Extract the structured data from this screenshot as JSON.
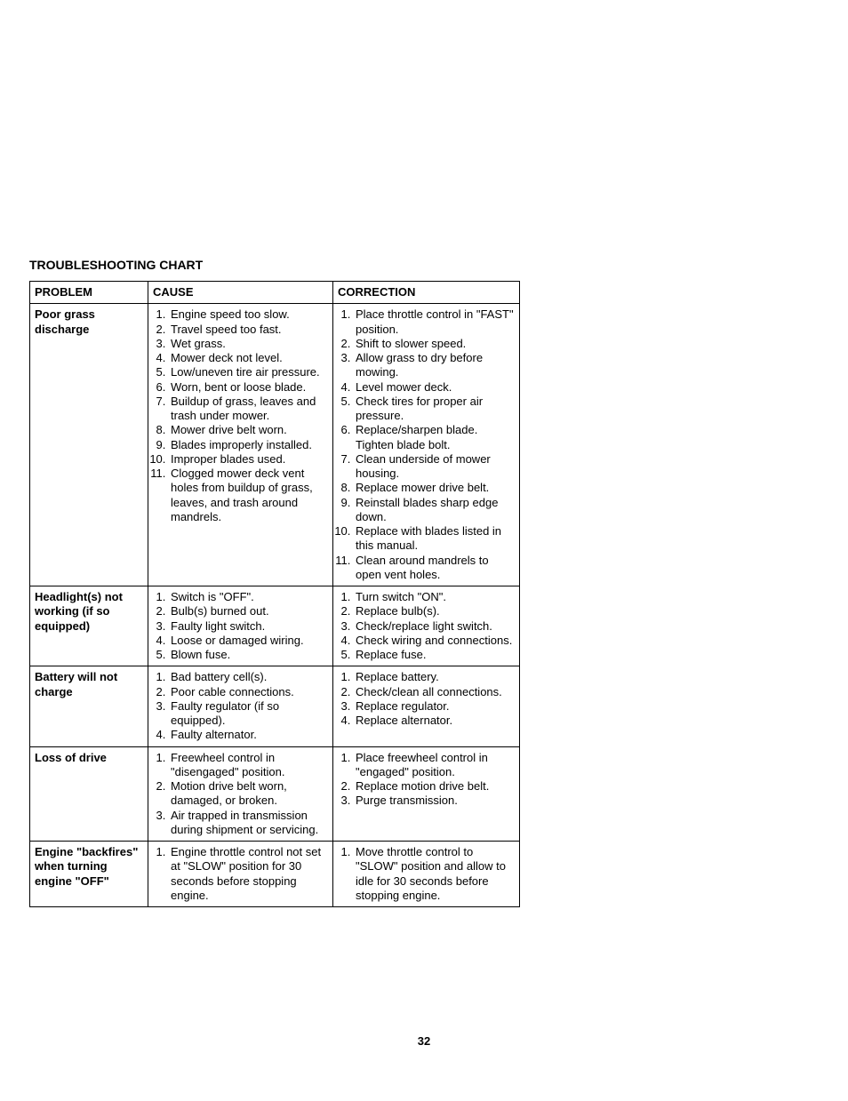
{
  "title": "TROUBLESHOOTING CHART",
  "page_number": "32",
  "headers": {
    "problem": "PROBLEM",
    "cause": "CAUSE",
    "correction": "CORRECTION"
  },
  "rows": [
    {
      "problem": "Poor grass discharge",
      "causes": [
        "Engine speed too slow.",
        "Travel speed too fast.",
        "Wet grass.",
        "Mower deck not level.",
        "Low/uneven tire air pressure.",
        "Worn, bent or loose blade.",
        "Buildup of grass, leaves and trash under mower.",
        "Mower drive belt worn.",
        "Blades improperly installed.",
        "Improper blades used.",
        "Clogged mower deck vent holes from buildup of grass, leaves, and trash around mandrels."
      ],
      "corrections": [
        "Place throttle control in \"FAST\" position.",
        "Shift to slower speed.",
        "Allow grass to dry before mowing.",
        "Level mower deck.",
        "Check tires for proper air pressure.",
        "Replace/sharpen blade. Tighten blade bolt.",
        "Clean underside of mower housing.",
        "Replace mower drive belt.",
        "Reinstall blades sharp edge down.",
        "Replace with blades listed in this manual.",
        "Clean around mandrels to open vent holes."
      ]
    },
    {
      "problem": "Headlight(s) not working (if so equipped)",
      "causes": [
        "Switch is \"OFF\".",
        "Bulb(s) burned out.",
        "Faulty light switch.",
        "Loose or damaged wiring.",
        "Blown fuse."
      ],
      "corrections": [
        "Turn switch \"ON\".",
        "Replace bulb(s).",
        "Check/replace light switch.",
        "Check wiring and connections.",
        "Replace fuse."
      ]
    },
    {
      "problem": "Battery will not charge",
      "causes": [
        "Bad battery cell(s).",
        "Poor cable connections.",
        "Faulty regulator (if so equipped).",
        "Faulty alternator."
      ],
      "corrections": [
        "Replace battery.",
        "Check/clean all connections.",
        "Replace regulator.",
        "Replace alternator."
      ]
    },
    {
      "problem": "Loss of drive",
      "causes": [
        "Freewheel control in \"disengaged\" position.",
        "Motion drive belt worn, damaged, or broken.",
        "Air trapped in transmission during shipment or servicing."
      ],
      "corrections": [
        "Place freewheel control in \"engaged\" position.",
        "Replace motion drive belt.",
        "Purge transmission."
      ]
    },
    {
      "problem": "Engine \"backfires\" when turning engine \"OFF\"",
      "causes": [
        "Engine throttle control not set at \"SLOW\" position for 30 seconds before stopping engine."
      ],
      "corrections": [
        "Move throttle control to \"SLOW\" position and allow to idle for 30 seconds before stopping engine."
      ]
    }
  ]
}
